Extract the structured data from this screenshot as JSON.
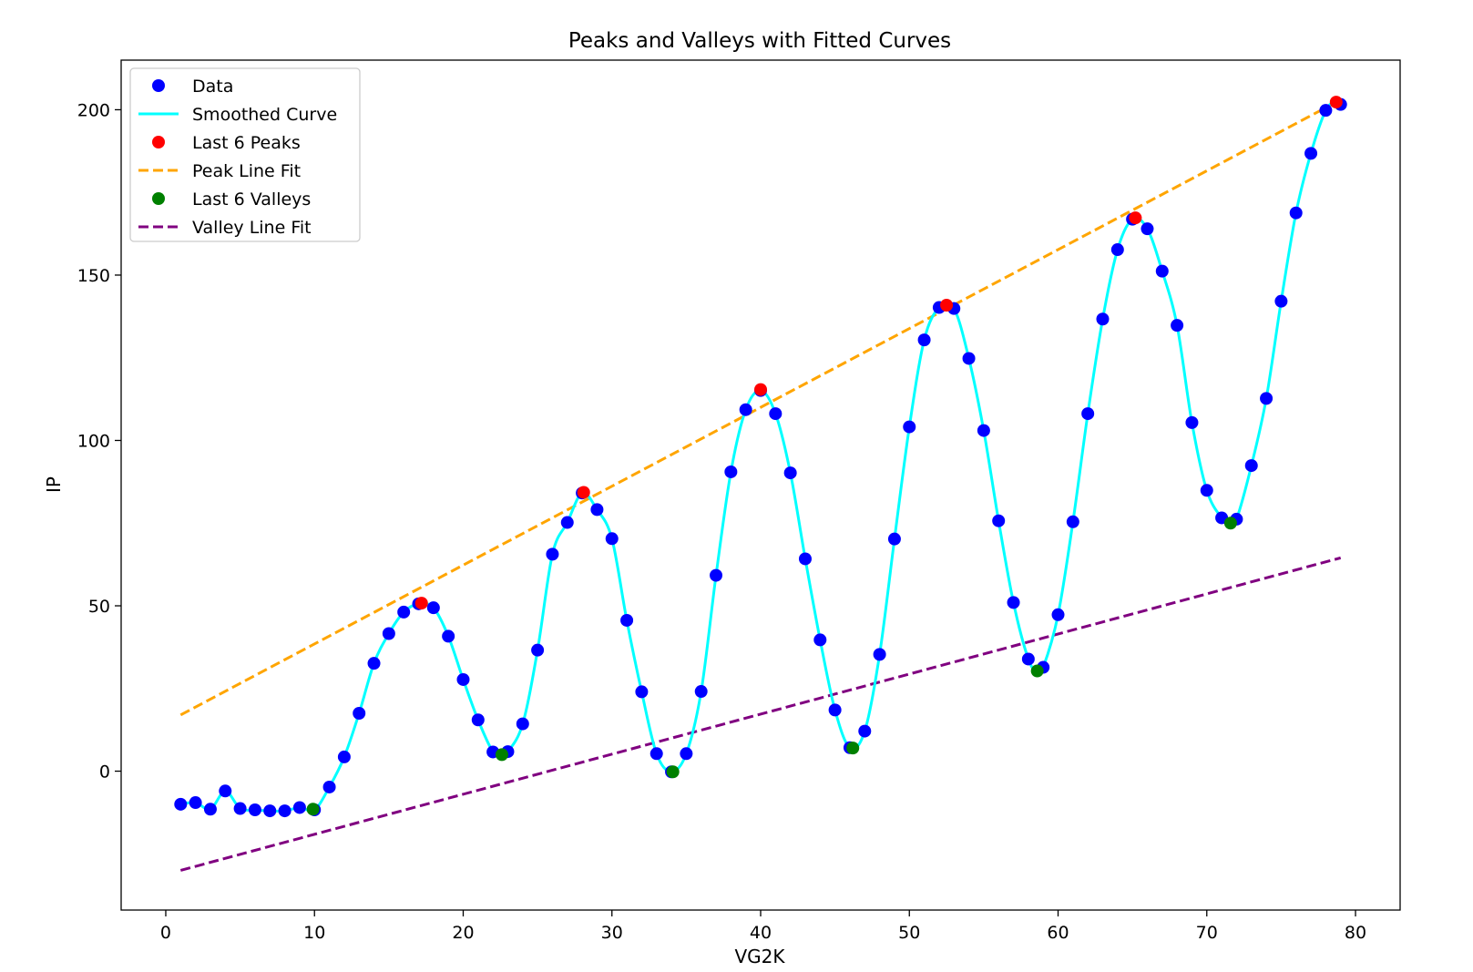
{
  "chart_data": {
    "type": "scatter",
    "title": "Peaks and Valleys with Fitted Curves",
    "xlabel": "VG2K",
    "ylabel": "IP",
    "xlim": [
      -3,
      83
    ],
    "ylim": [
      -42,
      215
    ],
    "xticks": [
      0,
      10,
      20,
      30,
      40,
      50,
      60,
      70,
      80
    ],
    "yticks": [
      0,
      50,
      100,
      150,
      200
    ],
    "grid": false,
    "legend_position": "top-left",
    "colors": {
      "data": "#0000ff",
      "smoothed": "#00ffff",
      "peaks": "#ff0000",
      "peak_fit": "#ffa500",
      "valleys": "#008000",
      "valley_fit": "#800080"
    },
    "legend": [
      {
        "label": "Data",
        "kind": "marker",
        "color": "#0000ff"
      },
      {
        "label": "Smoothed Curve",
        "kind": "line",
        "color": "#00ffff"
      },
      {
        "label": "Last 6 Peaks",
        "kind": "marker",
        "color": "#ff0000"
      },
      {
        "label": "Peak Line Fit",
        "kind": "dashed",
        "color": "#ffa500"
      },
      {
        "label": "Last 6 Valleys",
        "kind": "marker",
        "color": "#008000"
      },
      {
        "label": "Valley Line Fit",
        "kind": "dashed",
        "color": "#800080"
      }
    ],
    "data_points": {
      "x": [
        1,
        2,
        3,
        4,
        5,
        6,
        7,
        8,
        9,
        10,
        11,
        12,
        13,
        14,
        15,
        16,
        17,
        18,
        19,
        20,
        21,
        22,
        23,
        24,
        25,
        26,
        27,
        28,
        29,
        30,
        31,
        32,
        33,
        34,
        35,
        36,
        37,
        38,
        39,
        40,
        41,
        42,
        43,
        44,
        45,
        46,
        47,
        48,
        49,
        50,
        51,
        52,
        53,
        54,
        55,
        56,
        57,
        58,
        59,
        60,
        61,
        62,
        63,
        64,
        65,
        66,
        67,
        68,
        69,
        70,
        71,
        72,
        73,
        74,
        75,
        76,
        77,
        78,
        79
      ],
      "y": [
        -10,
        -9.5,
        -11.5,
        -6,
        -11.3,
        -11.7,
        -12,
        -12,
        -11,
        -11.7,
        -4.8,
        4.3,
        17.5,
        32.6,
        41.6,
        48.1,
        50.6,
        49.4,
        40.8,
        27.7,
        15.5,
        5.8,
        5.9,
        14.3,
        36.6,
        65.6,
        75.2,
        84.1,
        79.1,
        70.3,
        45.6,
        24,
        5.3,
        -0.2,
        5.3,
        24.1,
        59.2,
        90.5,
        109.3,
        115.1,
        108.1,
        90.2,
        64.2,
        39.7,
        18.5,
        7.1,
        12.1,
        35.3,
        70.2,
        104.1,
        130.4,
        140.2,
        139.9,
        124.8,
        103,
        75.7,
        51,
        33.9,
        31.4,
        47.3,
        75.4,
        108.1,
        136.7,
        157.7,
        166.9,
        164,
        151.2,
        134.8,
        105.4,
        84.9,
        76.6,
        76.2,
        92.4,
        112.7,
        142.1,
        168.8,
        186.8,
        199.8,
        201.6
      ]
    },
    "smoothed_points": [
      [
        1,
        -10
      ],
      [
        2,
        -9.5
      ],
      [
        3,
        -11.5
      ],
      [
        4,
        -6
      ],
      [
        5,
        -11.3
      ],
      [
        6,
        -11.7
      ],
      [
        7,
        -12
      ],
      [
        8,
        -12
      ],
      [
        9,
        -11
      ],
      [
        10,
        -11.7
      ],
      [
        11,
        -4.8
      ],
      [
        12,
        4.3
      ],
      [
        13,
        17.5
      ],
      [
        14,
        32.6
      ],
      [
        15,
        41.6
      ],
      [
        16,
        48.1
      ],
      [
        17,
        50.6
      ],
      [
        18,
        49.4
      ],
      [
        19,
        40.8
      ],
      [
        20,
        27.7
      ],
      [
        21,
        15.5
      ],
      [
        22,
        5.8
      ],
      [
        22.5,
        5
      ],
      [
        23,
        5.9
      ],
      [
        24,
        14.3
      ],
      [
        25,
        36.6
      ],
      [
        26,
        65.6
      ],
      [
        27,
        75.2
      ],
      [
        28,
        84.1
      ],
      [
        29,
        79.1
      ],
      [
        30,
        70.3
      ],
      [
        31,
        45.6
      ],
      [
        32,
        24
      ],
      [
        33,
        5.3
      ],
      [
        34,
        -0.2
      ],
      [
        35,
        5.3
      ],
      [
        36,
        24.1
      ],
      [
        37,
        59.2
      ],
      [
        38,
        90.5
      ],
      [
        39,
        109.3
      ],
      [
        40,
        115.1
      ],
      [
        41,
        108.1
      ],
      [
        42,
        90.2
      ],
      [
        43,
        64.2
      ],
      [
        44,
        39.7
      ],
      [
        45,
        18.5
      ],
      [
        46,
        7.1
      ],
      [
        47,
        12.1
      ],
      [
        48,
        35.3
      ],
      [
        49,
        70.2
      ],
      [
        50,
        104.1
      ],
      [
        51,
        130.4
      ],
      [
        52,
        140.2
      ],
      [
        53,
        139.9
      ],
      [
        54,
        124.8
      ],
      [
        55,
        103
      ],
      [
        56,
        75.7
      ],
      [
        57,
        51
      ],
      [
        58,
        33.9
      ],
      [
        58.6,
        30.3
      ],
      [
        59,
        31.4
      ],
      [
        60,
        47.3
      ],
      [
        61,
        75.4
      ],
      [
        62,
        108.1
      ],
      [
        63,
        136.7
      ],
      [
        64,
        157.7
      ],
      [
        65,
        166.9
      ],
      [
        66,
        164
      ],
      [
        67,
        151.2
      ],
      [
        68,
        134.8
      ],
      [
        69,
        105.4
      ],
      [
        70,
        84.9
      ],
      [
        71,
        76.6
      ],
      [
        71.6,
        75
      ],
      [
        72,
        76.2
      ],
      [
        73,
        92.4
      ],
      [
        74,
        112.7
      ],
      [
        75,
        142.1
      ],
      [
        76,
        168.8
      ],
      [
        77,
        186.8
      ],
      [
        78,
        199.8
      ],
      [
        78.7,
        202.3
      ],
      [
        79,
        201.6
      ]
    ],
    "peaks": {
      "x": [
        17.2,
        28.1,
        40,
        52.5,
        65.2,
        78.7
      ],
      "y": [
        50.8,
        84.3,
        115.4,
        140.9,
        167.3,
        202.3
      ]
    },
    "valleys": {
      "x": [
        9.9,
        22.6,
        34.1,
        46.2,
        58.6,
        71.6
      ],
      "y": [
        -11.5,
        5,
        -0.2,
        7,
        30.3,
        75
      ]
    },
    "peak_line_fit": {
      "x": [
        1,
        79
      ],
      "y": [
        17,
        203
      ]
    },
    "valley_line_fit": {
      "x": [
        1,
        79
      ],
      "y": [
        -30,
        64.5
      ]
    }
  }
}
